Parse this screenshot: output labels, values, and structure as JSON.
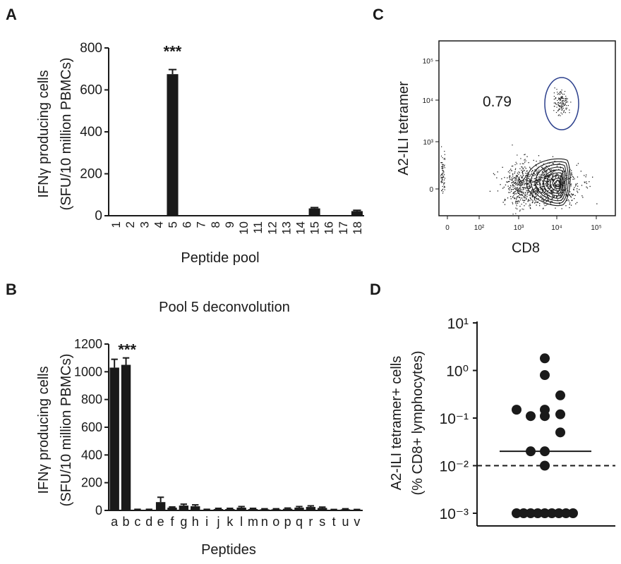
{
  "panels": {
    "a_letter": "A",
    "b_letter": "B",
    "c_letter": "C",
    "d_letter": "D"
  },
  "chart_data": [
    {
      "panel": "A",
      "type": "bar",
      "title": "",
      "xlabel": "Peptide pool",
      "ylabel_line1": "IFNγ producing cells",
      "ylabel_line2": "(SFU/10 million PBMCs)",
      "ylim": [
        0,
        800
      ],
      "yticks": [
        0,
        200,
        400,
        600,
        800
      ],
      "categories": [
        "1",
        "2",
        "3",
        "4",
        "5",
        "6",
        "7",
        "8",
        "9",
        "10",
        "11",
        "12",
        "13",
        "14",
        "15",
        "16",
        "17",
        "18"
      ],
      "values": [
        3,
        2,
        0,
        0,
        675,
        0,
        2,
        0,
        0,
        0,
        0,
        0,
        0,
        0,
        35,
        0,
        0,
        22
      ],
      "errors": [
        0,
        0,
        0,
        0,
        22,
        0,
        0,
        0,
        0,
        0,
        0,
        0,
        0,
        0,
        4,
        0,
        0,
        4
      ],
      "annotations": [
        {
          "category": "5",
          "text": "***"
        }
      ],
      "bar_color": "#1a1a1a"
    },
    {
      "panel": "B",
      "type": "bar",
      "title": "Pool 5 deconvolution",
      "xlabel": "Peptides",
      "ylabel_line1": "IFNγ producing cells",
      "ylabel_line2": "(SFU/10 million PBMCs)",
      "ylim": [
        0,
        1200
      ],
      "yticks": [
        0,
        200,
        400,
        600,
        800,
        1000,
        1200
      ],
      "categories": [
        "a",
        "b",
        "c",
        "d",
        "e",
        "f",
        "g",
        "h",
        "i",
        "j",
        "k",
        "l",
        "m",
        "n",
        "o",
        "p",
        "q",
        "r",
        "s",
        "t",
        "u",
        "v"
      ],
      "values": [
        1030,
        1050,
        5,
        5,
        60,
        20,
        35,
        30,
        5,
        10,
        10,
        20,
        10,
        8,
        8,
        12,
        20,
        25,
        18,
        5,
        8,
        5
      ],
      "errors": [
        60,
        50,
        3,
        3,
        35,
        5,
        10,
        10,
        3,
        5,
        5,
        8,
        5,
        4,
        4,
        5,
        8,
        8,
        6,
        2,
        4,
        2
      ],
      "annotations": [
        {
          "category": "a",
          "text": "***"
        }
      ],
      "bar_color": "#1a1a1a"
    },
    {
      "panel": "C",
      "type": "scatter",
      "xlabel": "CD8",
      "ylabel": "A2-ILI tetramer",
      "xticks": [
        "0",
        "10²",
        "10³",
        "10⁴",
        "10⁵"
      ],
      "yticks": [
        "0",
        "10³",
        "10⁴",
        "10⁵"
      ],
      "gate_value": "0.79",
      "gate_color": "#2b3f8c"
    },
    {
      "panel": "D",
      "type": "scatter",
      "xlabel": "",
      "ylabel_line1": "A2-ILI tetramer+ cells",
      "ylabel_line2": "(% CD8+ lymphocytes)",
      "scale": "log",
      "ylim": [
        0.001,
        10
      ],
      "yticks": [
        "10¹",
        "10⁰",
        "10⁻¹",
        "10⁻²",
        "10⁻³"
      ],
      "values": [
        1.8,
        0.8,
        0.3,
        0.15,
        0.15,
        0.12,
        0.11,
        0.11,
        0.05,
        0.02,
        0.02,
        0.01,
        0.001,
        0.001,
        0.001,
        0.001,
        0.001,
        0.001,
        0.001,
        0.001,
        0.001
      ],
      "median": 0.02,
      "threshold": 0.01
    }
  ]
}
